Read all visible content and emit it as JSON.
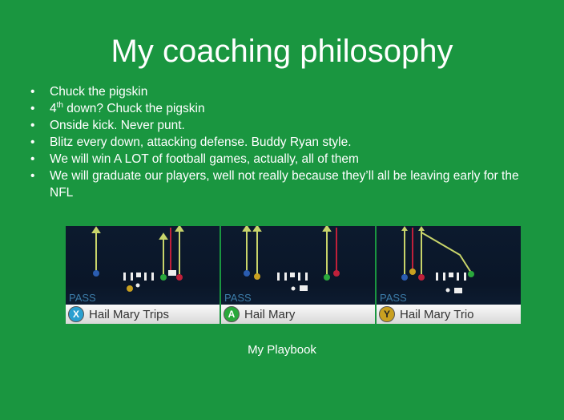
{
  "slide": {
    "title": "My coaching philosophy",
    "bullets": [
      {
        "text": "Chuck the pigskin"
      },
      {
        "pre": "4",
        "sup": "th",
        "post": " down? Chuck the pigskin"
      },
      {
        "text": "Onside kick. Never punt."
      },
      {
        "text": "Blitz every down, attacking defense. Buddy Ryan style."
      },
      {
        "text": "We will win A LOT of football games, actually, all of them"
      },
      {
        "text": "We will graduate our players, well not really because they’ll all be leaving early for the NFL"
      }
    ],
    "caption": "My Playbook"
  },
  "playbook": {
    "plays": [
      {
        "type": "PASS",
        "button": "X",
        "button_color": "#2a9fd0",
        "name": "Hail Mary Trips"
      },
      {
        "type": "PASS",
        "button": "A",
        "button_color": "#2aa83c",
        "name": "Hail Mary"
      },
      {
        "type": "PASS",
        "button": "Y",
        "button_color": "#c9a020",
        "name": "Hail Mary Trio"
      }
    ]
  },
  "colors": {
    "background": "#1a9640",
    "route_yellow": "#c8d46a",
    "route_red": "#c0203a"
  }
}
